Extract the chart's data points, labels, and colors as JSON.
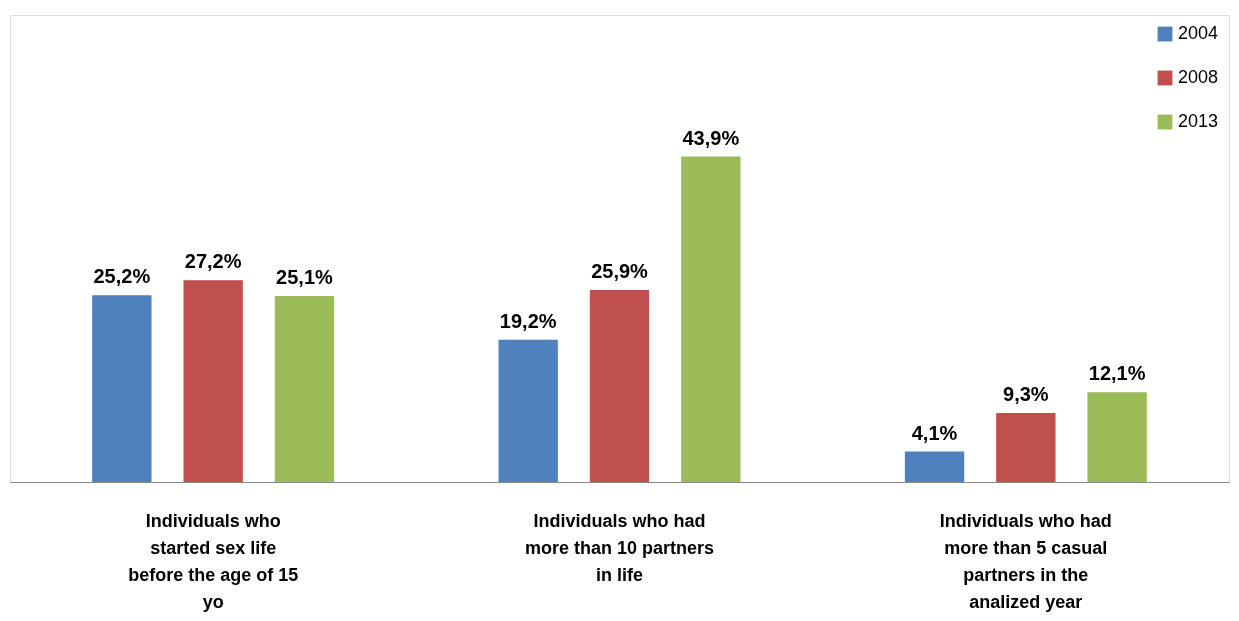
{
  "chart_data": {
    "type": "bar",
    "categories": [
      "Individuals who started sex life before the age of 15 yo",
      "Individuals who had more than 10 partners in life",
      "Individuals who had more than 5 casual partners in the analized year"
    ],
    "series": [
      {
        "name": "2004",
        "color": "#4f81bd",
        "values": [
          25.2,
          19.2,
          4.1
        ],
        "value_labels": [
          "25,2%",
          "19,2%",
          "4,1%"
        ]
      },
      {
        "name": "2008",
        "color": "#c0504d",
        "values": [
          27.2,
          25.9,
          9.3
        ],
        "value_labels": [
          "27,2%",
          "25,9%",
          "9,3%"
        ]
      },
      {
        "name": "2013",
        "color": "#9bbb59",
        "values": [
          25.1,
          43.9,
          12.1
        ],
        "value_labels": [
          "25,1%",
          "43,9%",
          "12,1%"
        ]
      }
    ],
    "ylim": [
      0,
      63
    ],
    "tick_labels": "x",
    "grid": false,
    "legend": "top right"
  }
}
